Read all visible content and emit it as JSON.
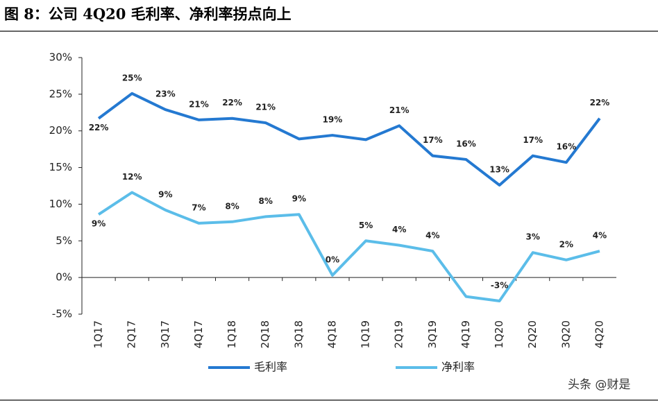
{
  "chart_data": {
    "type": "line",
    "title": "图 8：公司 4Q20 毛利率、净利率拐点向上",
    "watermark": "头条 @财是",
    "categories": [
      "1Q17",
      "2Q17",
      "3Q17",
      "4Q17",
      "1Q18",
      "2Q18",
      "3Q18",
      "4Q18",
      "1Q19",
      "2Q19",
      "3Q19",
      "4Q19",
      "1Q20",
      "2Q20",
      "3Q20",
      "4Q20"
    ],
    "series": [
      {
        "name": "毛利率",
        "color": "#2479d1",
        "values": [
          21.7,
          25.1,
          22.9,
          21.5,
          21.7,
          21.1,
          18.9,
          19.4,
          18.8,
          20.7,
          16.6,
          16.1,
          12.6,
          16.6,
          15.7,
          21.7
        ],
        "value_labels": [
          "22%",
          "25%",
          "23%",
          "21%",
          "22%",
          "21%",
          null,
          "19%",
          null,
          "21%",
          "17%",
          "16%",
          "13%",
          "17%",
          "16%",
          "22%"
        ]
      },
      {
        "name": "净利率",
        "color": "#5bbde9",
        "values": [
          8.6,
          11.6,
          9.2,
          7.4,
          7.6,
          8.3,
          8.6,
          0.3,
          5.0,
          4.4,
          3.6,
          -2.6,
          -3.2,
          3.4,
          2.4,
          3.6
        ],
        "value_labels": [
          "9%",
          "12%",
          "9%",
          "7%",
          "8%",
          "8%",
          "9%",
          "0%",
          "5%",
          "4%",
          "4%",
          null,
          "-3%",
          "3%",
          "2%",
          "4%"
        ]
      }
    ],
    "ylim": [
      -5,
      30
    ],
    "yticks": [
      {
        "value": -5,
        "label": "-5%"
      },
      {
        "value": 0,
        "label": "0%"
      },
      {
        "value": 5,
        "label": "5%"
      },
      {
        "value": 10,
        "label": "10%"
      },
      {
        "value": 15,
        "label": "15%"
      },
      {
        "value": 20,
        "label": "20%"
      },
      {
        "value": 25,
        "label": "25%"
      },
      {
        "value": 30,
        "label": "30%"
      }
    ],
    "grid": false
  }
}
